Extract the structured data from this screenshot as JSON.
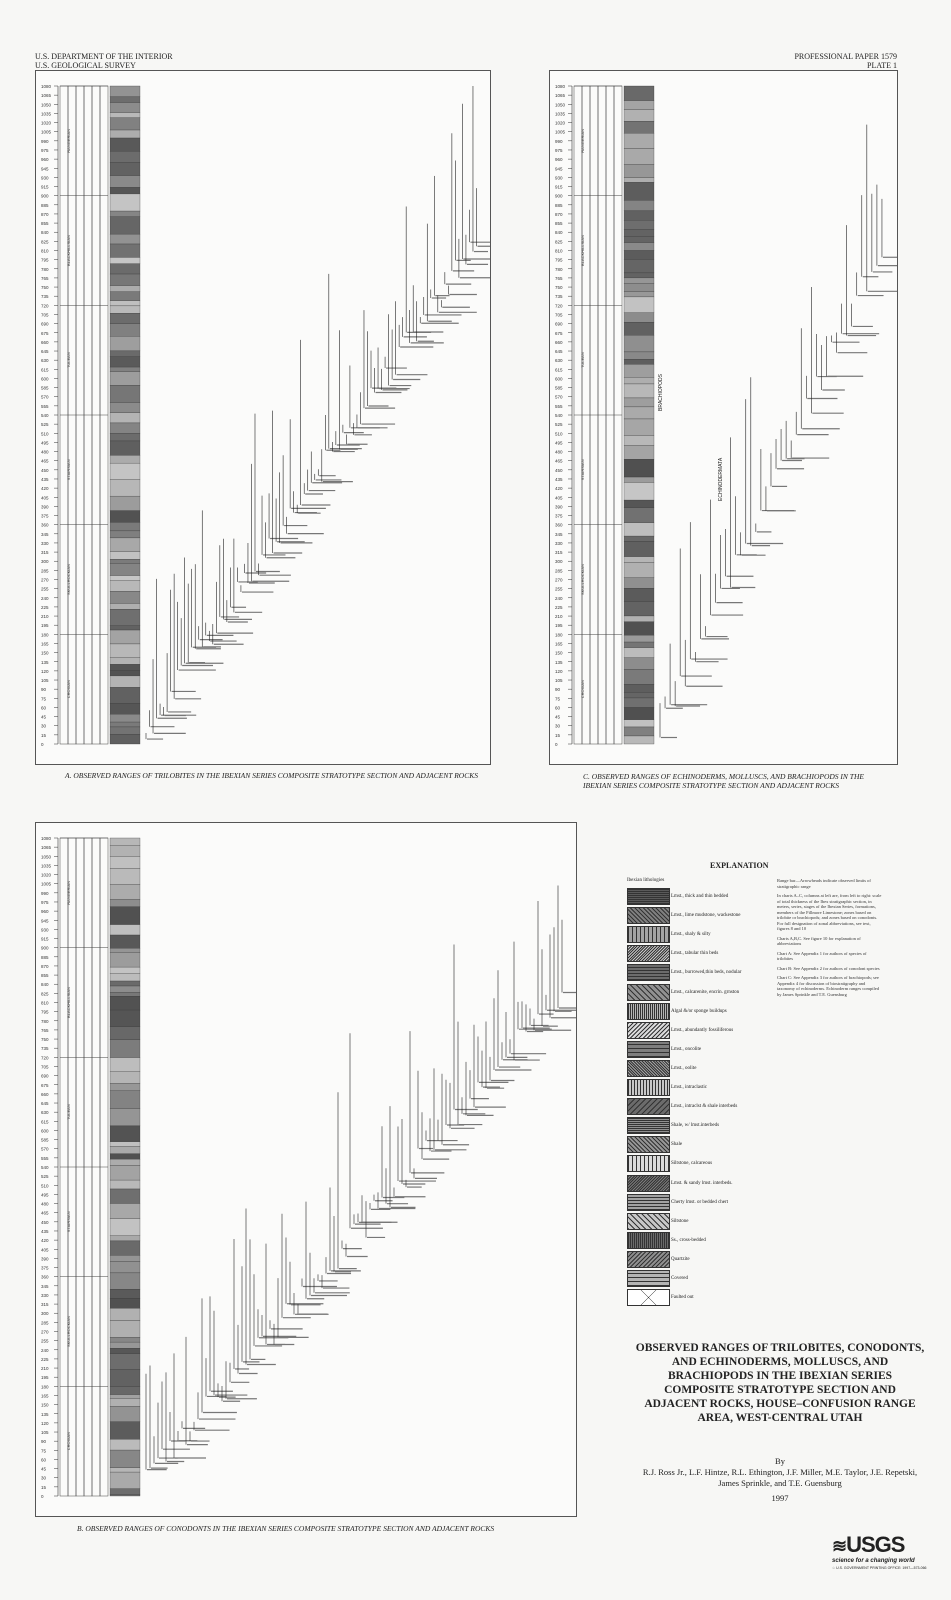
{
  "header": {
    "dept": "U.S. DEPARTMENT OF THE INTERIOR",
    "survey": "U.S. GEOLOGICAL SURVEY",
    "paper": "PROFESSIONAL PAPER 1579",
    "plate": "PLATE 1"
  },
  "panels": {
    "a": {
      "caption": "A.  OBSERVED RANGES OF TRILOBITES IN THE IBEXIAN SERIES COMPOSITE STRATOTYPE SECTION AND ADJACENT ROCKS"
    },
    "b": {
      "caption": "B.  OBSERVED RANGES OF CONODONTS IN THE IBEXIAN SERIES COMPOSITE STRATOTYPE SECTION AND ADJACENT ROCKS"
    },
    "c": {
      "caption": "C.  OBSERVED RANGES OF ECHINODERMS, MOLLUSCS, AND BRACHIOPODS IN THE IBEXIAN SERIES COMPOSITE STRATOTYPE SECTION AND ADJACENT ROCKS",
      "group_labels": [
        "BRACHIOPODS",
        "ECHINODERMATA"
      ]
    }
  },
  "scale_ticks": [
    1080,
    1065,
    1050,
    1035,
    1020,
    1005,
    990,
    975,
    960,
    945,
    930,
    915,
    900,
    885,
    870,
    855,
    840,
    825,
    810,
    795,
    780,
    765,
    750,
    735,
    720,
    705,
    690,
    675,
    660,
    645,
    630,
    615,
    600,
    585,
    570,
    555,
    540,
    525,
    510,
    495,
    480,
    465,
    450,
    435,
    420,
    405,
    390,
    375,
    360,
    345,
    330,
    315,
    300,
    285,
    270,
    255,
    240,
    225,
    210,
    195,
    180,
    165,
    150,
    135,
    120,
    105,
    90,
    75,
    60,
    45,
    30,
    15,
    0
  ],
  "stages": [
    "CROIXAN",
    "SKULLROCKIAN",
    "STAIRSIAN",
    "TULEAN",
    "BLACKHILLSIAN",
    "RANGERIAN"
  ],
  "explanation": {
    "title": "EXPLANATION",
    "lith_heading": "Ibexian lithologies",
    "lithologies": [
      "Lmst., thick and thin bedded",
      "Lmst., lime mudstone, wackestone",
      "Lmst., shaly & silty",
      "Lmst., tabular thin beds",
      "Lmst., burrowed,thin beds, nodular",
      "Lmst., calcarenite, encrin. grnston",
      "Algal &/or sponge buildups",
      "Lmst., abundantly fossiliferous",
      "Lmst., oncolite",
      "Lmst., oolite",
      "Lmst., intraclastic",
      "Lmst., intraclst & shale interbeds",
      "Shale, w/ lmst.interbeds",
      "Shale",
      "Siltstone, calcareous",
      "Lmst. & sandy lmst. interbeds.",
      "Cherty lmst. or bedded chert",
      "Siltstone",
      "Ss., cross-bedded",
      "Quartzite",
      "Covered",
      "Faulted out"
    ],
    "notes": [
      "Range bar—Arrowheads indicate observed limits of stratigraphic range",
      "In charts A–C, columns at left are, from left to right: scale of total thickness of the Ibex stratigraphic section, in meters, series, stages of the Ibexian Series, formations, members of the Fillmore Limestone; zones based on trilobite or brachiopods; and zones based on conodonts. For full designation of zonal abbreviations, see text, figures 8 and 10",
      "Charts A,B,C.  See figure 10 for explanation of abbreviations",
      "Chart A:  See Appendix 1 for authors of species of trilobites",
      "Chart B:  See Appendix 2 for authors of conodont species",
      "Chart C:  See Appendix 3 for authors of brachiopods; see Appendix 4 for discussion of biostratigraphy and taxonomy of echinoderms. Echinoderm ranges compiled by James Sprinkle and T.E. Guensburg"
    ]
  },
  "title": "OBSERVED RANGES OF TRILOBITES, CONODONTS, AND ECHINODERMS, MOLLUSCS, AND BRACHIOPODS IN THE IBEXIAN SERIES COMPOSITE STRATOTYPE SECTION AND ADJACENT ROCKS, HOUSE–CONFUSION RANGE AREA, WEST-CENTRAL UTAH",
  "by": "By",
  "authors": "R.J. Ross Jr., L.F. Hintze, R.L. Ethington, J.F. Miller, M.E. Taylor, J.E. Repetski, James Sprinkle, and T.E. Guensburg",
  "year": "1997",
  "logo": {
    "text": "USGS",
    "tagline": "science for a changing world"
  },
  "printing": "☆ U.S. GOVERNMENT PRINTING OFFICE: 1997—573-066"
}
